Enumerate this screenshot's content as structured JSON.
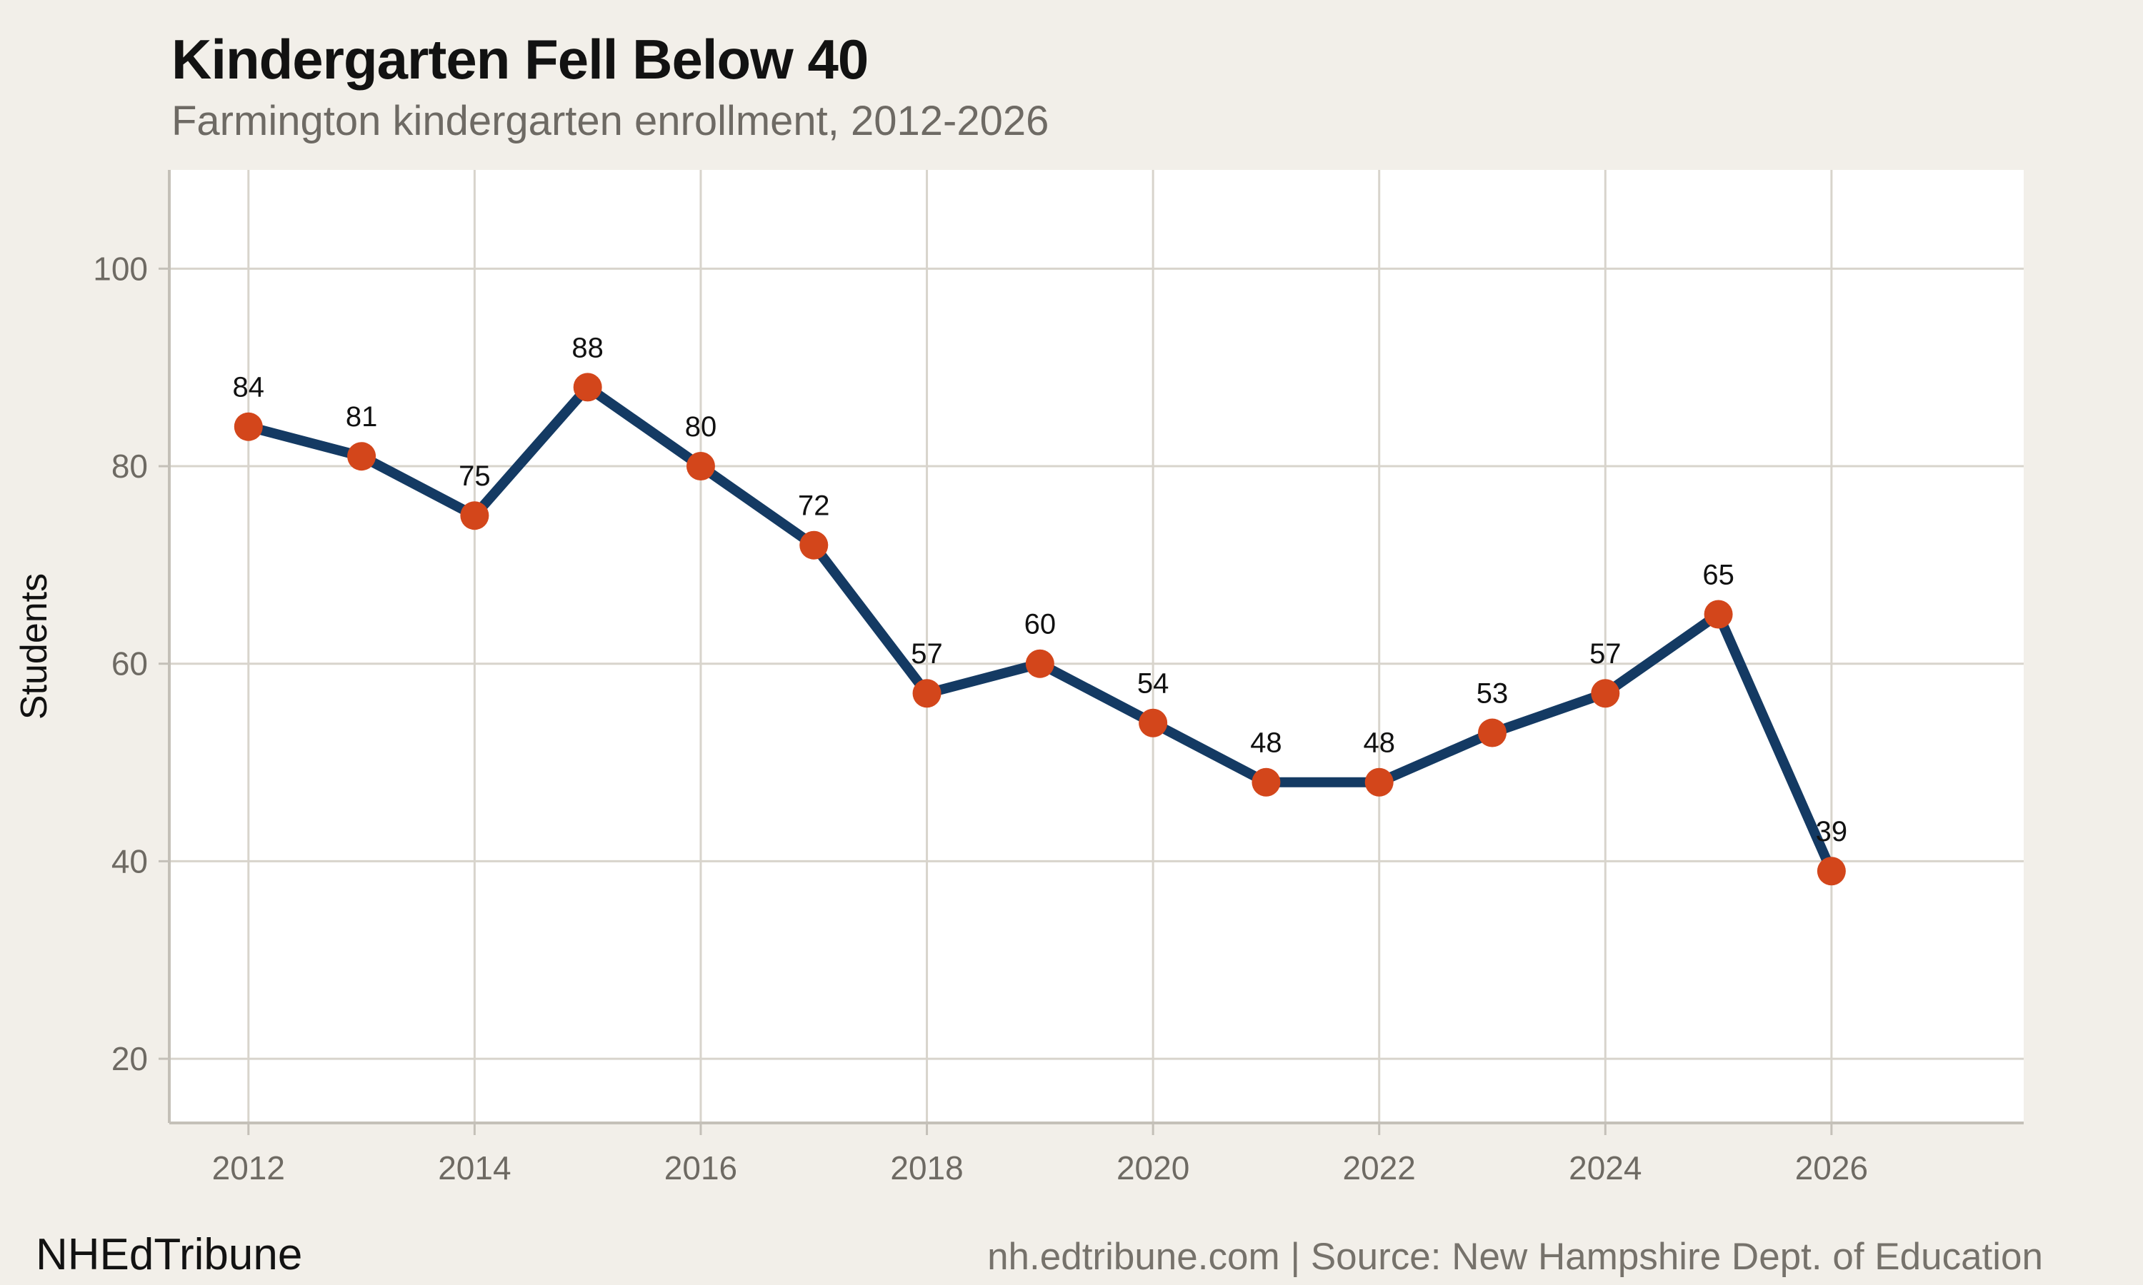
{
  "header": {
    "title": "Kindergarten Fell Below 40",
    "subtitle": "Farmington kindergarten enrollment, 2012-2026"
  },
  "footer": {
    "brand": "NHEdTribune",
    "attribution": "nh.edtribune.com | Source: New Hampshire Dept. of Education"
  },
  "chart_data": {
    "type": "line",
    "title": "Kindergarten Fell Below 40",
    "subtitle": "Farmington kindergarten enrollment, 2012-2026",
    "x": [
      2012,
      2013,
      2014,
      2015,
      2016,
      2017,
      2018,
      2019,
      2020,
      2021,
      2022,
      2023,
      2024,
      2025,
      2026
    ],
    "values": [
      84,
      81,
      75,
      88,
      80,
      72,
      57,
      60,
      54,
      48,
      48,
      53,
      57,
      65,
      39
    ],
    "xlabel": "",
    "ylabel": "Students",
    "xticks": [
      2012,
      2014,
      2016,
      2018,
      2020,
      2022,
      2024,
      2026
    ],
    "yticks": [
      20,
      40,
      60,
      80,
      100
    ],
    "xlim": [
      2011.3,
      2027.7
    ],
    "ylim": [
      13.5,
      110
    ],
    "grid": true,
    "legend": "none",
    "point_labels": true,
    "colors": {
      "page_bg": "#f2efe9",
      "plot_bg": "#ffffff",
      "grid": "#d8d4cc",
      "axis": "#c4c0b8",
      "tick_text": "#6e6a63",
      "line": "#143a63",
      "marker": "#d3461b",
      "label_text": "#111111"
    }
  }
}
